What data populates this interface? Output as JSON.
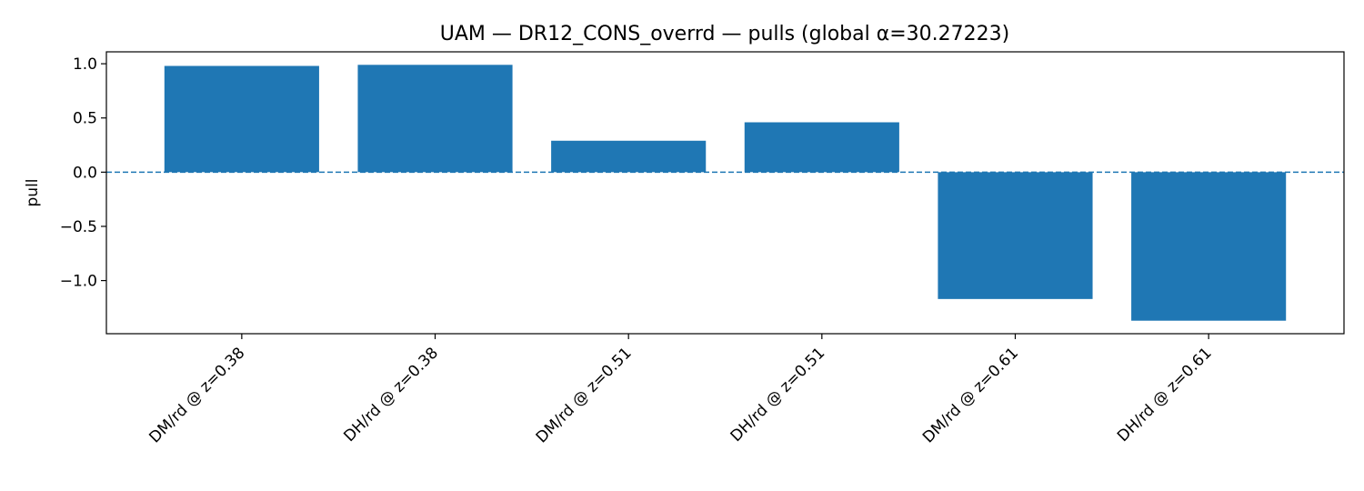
{
  "chart_data": {
    "type": "bar",
    "title": "UAM — DR12_CONS_overrd — pulls (global α=30.27223)",
    "xlabel": "",
    "ylabel": "pull",
    "categories": [
      "DM/rd @ z=0.38",
      "DH/rd @ z=0.38",
      "DM/rd @ z=0.51",
      "DH/rd @ z=0.51",
      "DM/rd @ z=0.61",
      "DH/rd @ z=0.61"
    ],
    "values": [
      0.98,
      0.99,
      0.29,
      0.46,
      -1.17,
      -1.37
    ],
    "yticks": [
      1.0,
      0.5,
      0.0,
      -0.5,
      -1.0
    ],
    "ytick_labels": [
      "1.0",
      "0.5",
      "0.0",
      "−0.5",
      "−1.0"
    ],
    "ylim": [
      -1.49,
      1.11
    ],
    "reference_line": 0,
    "grid": false,
    "bar_color": "#1f77b4",
    "reference_line_color": "#1f77b4"
  }
}
